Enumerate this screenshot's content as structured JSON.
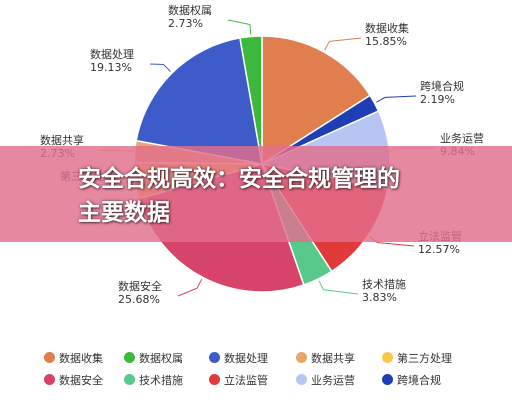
{
  "banner": {
    "line1": "安全合规高效：安全合规管理的",
    "line2": "主要数据"
  },
  "chart_data": {
    "type": "pie",
    "slices": [
      {
        "name": "数据收集",
        "value": 15.85,
        "label": "15.85%",
        "color": "#e07e4e"
      },
      {
        "name": "跨境合规",
        "value": 2.19,
        "label": "2.19%",
        "color": "#1e3eb5"
      },
      {
        "name": "业务运营",
        "value": 9.84,
        "label": "9.84%",
        "color": "#b6c5f2"
      },
      {
        "name": "立法监管",
        "value": 12.57,
        "label": "12.57%",
        "color": "#e03a3a"
      },
      {
        "name": "技术措施",
        "value": 3.83,
        "label": "3.83%",
        "color": "#58c98a"
      },
      {
        "name": "数据安全",
        "value": 25.68,
        "label": "25.68%",
        "color": "#d6446a"
      },
      {
        "name": "第三方处理",
        "value": 4.5,
        "label": "",
        "color": "#f6c94a"
      },
      {
        "name": "数据共享",
        "value": 2.73,
        "label": "2.73%",
        "color": "#e8a66a"
      },
      {
        "name": "数据处理",
        "value": 19.13,
        "label": "19.13%",
        "color": "#3d5cc9"
      },
      {
        "name": "数据权属",
        "value": 2.73,
        "label": "2.73%",
        "color": "#3cb83c"
      }
    ],
    "legend": [
      {
        "name": "数据收集",
        "color": "#e07e4e"
      },
      {
        "name": "数据权属",
        "color": "#3cb83c"
      },
      {
        "name": "数据处理",
        "color": "#3d5cc9"
      },
      {
        "name": "数据共享",
        "color": "#e8a66a"
      },
      {
        "name": "第三方处理",
        "color": "#f6c94a"
      },
      {
        "name": "数据安全",
        "color": "#d6446a"
      },
      {
        "name": "技术措施",
        "color": "#58c98a"
      },
      {
        "name": "立法监管",
        "color": "#e03a3a"
      },
      {
        "name": "业务运营",
        "color": "#b6c5f2"
      },
      {
        "name": "跨境合规",
        "color": "#1e3eb5"
      }
    ],
    "legend_position": "bottom"
  }
}
